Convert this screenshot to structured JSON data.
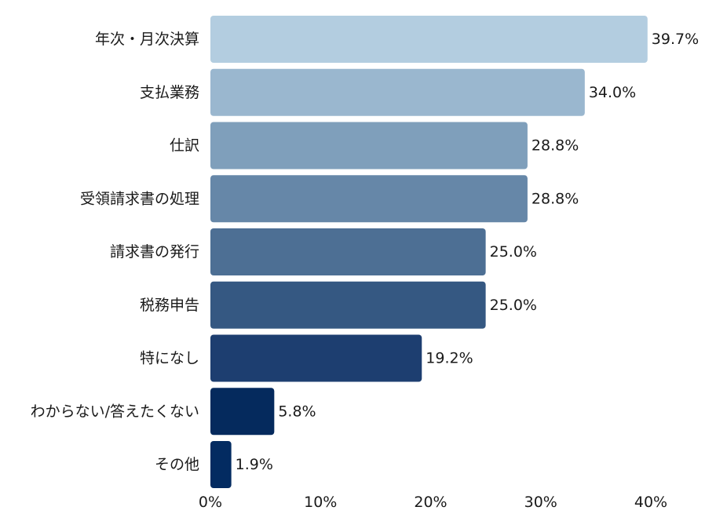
{
  "chart_data": {
    "type": "bar",
    "orientation": "horizontal",
    "categories": [
      "年次・月次決算",
      "支払業務",
      "仕訳",
      "受領請求書の処理",
      "請求書の発行",
      "税務申告",
      "特になし",
      "わからない/答えたくない",
      "その他"
    ],
    "values": [
      39.7,
      34.0,
      28.8,
      28.8,
      25.0,
      25.0,
      19.2,
      5.8,
      1.9
    ],
    "value_labels": [
      "39.7%",
      "34.0%",
      "28.8%",
      "28.8%",
      "25.0%",
      "25.0%",
      "19.2%",
      "5.8%",
      "1.9%"
    ],
    "bar_colors": [
      "#b3cde0",
      "#9ab7cf",
      "#7f9fbb",
      "#6687a8",
      "#4d6f94",
      "#355882",
      "#1d3e70",
      "#052a5d",
      "#032b61"
    ],
    "xlim": [
      0,
      40
    ],
    "x_ticks": [
      "0%",
      "10%",
      "20%",
      "30%",
      "40%"
    ],
    "x_tick_values": [
      0,
      10,
      20,
      30,
      40
    ],
    "grid": false,
    "legend": "none"
  }
}
